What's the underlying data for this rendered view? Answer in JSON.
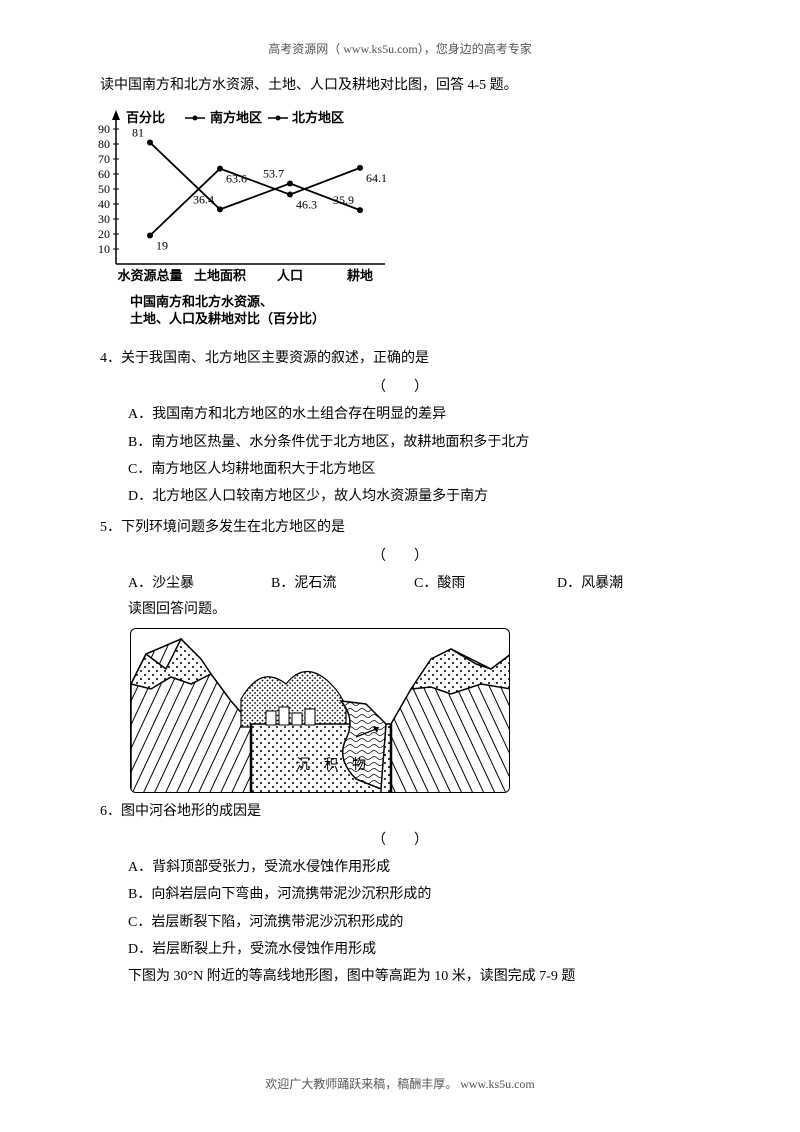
{
  "header": "高考资源网（ www.ks5u.com），您身边的高考专家",
  "footer": "欢迎广大教师踊跃来稿，稿酬丰厚。    www.ks5u.com",
  "intro": "读中国南方和北方水资源、土地、人口及耕地对比图，回答 4-5 题。",
  "chart": {
    "y_label": "百分比",
    "legend_south": "南方地区",
    "legend_north": "北方地区",
    "y_ticks": [
      "90",
      "80",
      "70",
      "60",
      "50",
      "40",
      "30",
      "20",
      "10"
    ],
    "x_ticks": [
      "水资源总量",
      "土地面积",
      "人口",
      "耕地"
    ],
    "south_values": [
      81,
      36.4,
      53.7,
      35.9
    ],
    "north_values": [
      19,
      63.6,
      46.3,
      64.1
    ],
    "caption_line1": "中国南方和北方水资源、",
    "caption_line2": "土地、人口及耕地对比（百分比）",
    "colors": {
      "axis": "#000000",
      "series": "#000000",
      "text": "#000000"
    },
    "marker_south": "dot",
    "marker_north": "dot",
    "arrow_symbol": "↔"
  },
  "q4": {
    "text": "4．关于我国南、北方地区主要资源的叙述，正确的是",
    "paren": "（　　）",
    "A": "A．我国南方和北方地区的水土组合存在明显的差异",
    "B": "B．南方地区热量、水分条件优于北方地区，故耕地面积多于北方",
    "C": "C．南方地区人均耕地面积大于北方地区",
    "D": "D．北方地区人口较南方地区少，故人均水资源量多于南方"
  },
  "q5": {
    "text": "5．下列环境问题多发生在北方地区的是",
    "paren": "（　　）",
    "A": "A．沙尘暴",
    "B": "B．泥石流",
    "C": "C．酸雨",
    "D": "D．风暴潮",
    "postnote": "读图回答问题。"
  },
  "geo": {
    "label": "沉　积　物"
  },
  "q6": {
    "text": "6．图中河谷地形的成因是",
    "paren": "（　　）",
    "A": "A．背斜顶部受张力，受流水侵蚀作用形成",
    "B": "B．向斜岩层向下弯曲，河流携带泥沙沉积形成的",
    "C": "C．岩层断裂下陷，河流携带泥沙沉积形成的",
    "D": "D．岩层断裂上升，受流水侵蚀作用形成",
    "postnote": "下图为 30°N 附近的等高线地形图，图中等高距为 10 米，读图完成 7-9 题"
  }
}
